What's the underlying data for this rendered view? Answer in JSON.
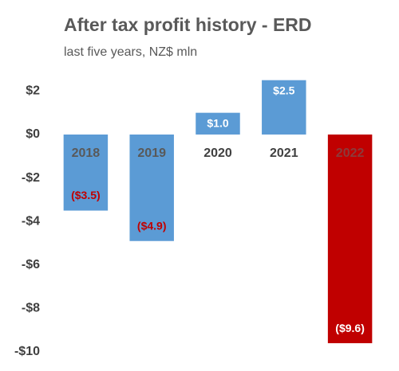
{
  "chart_data": {
    "type": "bar",
    "title": "After tax profit history - ERD",
    "subtitle": "last five years, NZ$ mln",
    "categories": [
      "2018",
      "2019",
      "2020",
      "2021",
      "2022"
    ],
    "values": [
      -3.5,
      -4.9,
      1.0,
      2.5,
      -9.6
    ],
    "value_labels": [
      "($3.5)",
      "($4.9)",
      "$1.0",
      "$2.5",
      "($9.6)"
    ],
    "colors": [
      "#5b9bd5",
      "#5b9bd5",
      "#5b9bd5",
      "#5b9bd5",
      "#c00000"
    ],
    "value_label_colors": [
      "#c00000",
      "#c00000",
      "#ffffff",
      "#ffffff",
      "#ffffff"
    ],
    "category_colors": [
      "#595959",
      "#595959",
      "#404040",
      "#404040",
      "#8c3a3a"
    ],
    "ylim": [
      -10,
      2.5
    ],
    "yticks": [
      {
        "value": 2,
        "label": "$2"
      },
      {
        "value": 0,
        "label": "$0"
      },
      {
        "value": -2,
        "label": "-$2"
      },
      {
        "value": -4,
        "label": "-$4"
      },
      {
        "value": -6,
        "label": "-$6"
      },
      {
        "value": -8,
        "label": "-$8"
      },
      {
        "value": -10,
        "label": "-$10"
      }
    ],
    "grid": false
  }
}
